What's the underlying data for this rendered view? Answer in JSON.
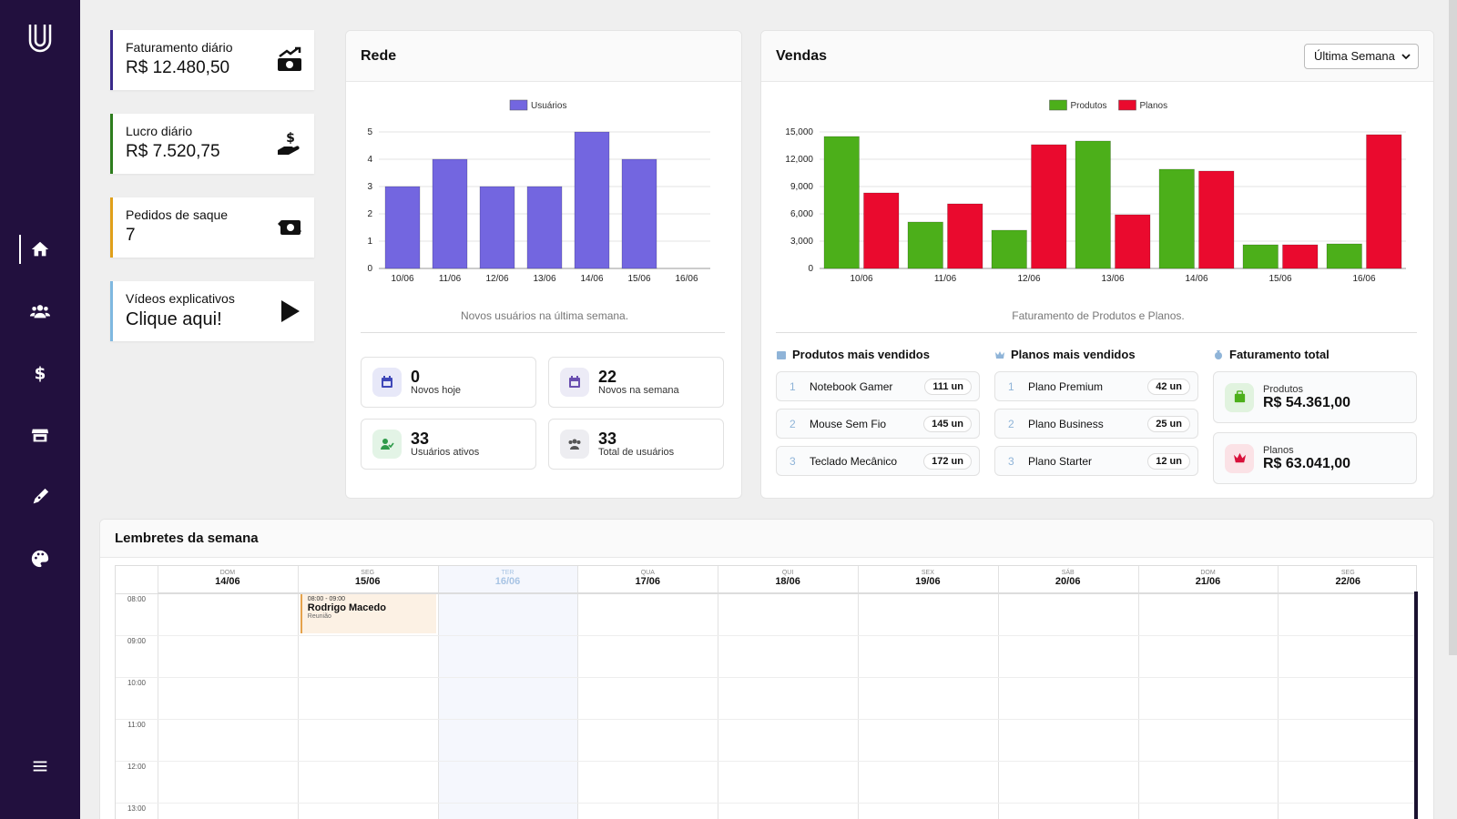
{
  "sidebar": {
    "items": [
      {
        "name": "home",
        "icon": "home-icon",
        "active": true
      },
      {
        "name": "users",
        "icon": "users-icon"
      },
      {
        "name": "finance",
        "icon": "dollar-icon"
      },
      {
        "name": "store",
        "icon": "store-icon"
      },
      {
        "name": "pen",
        "icon": "pen-icon"
      },
      {
        "name": "palette",
        "icon": "palette-icon"
      },
      {
        "name": "menu",
        "icon": "menu-icon"
      }
    ]
  },
  "stats": [
    {
      "label": "Faturamento diário",
      "value": "R$ 12.480,50",
      "icon": "money-growth-icon"
    },
    {
      "label": "Lucro diário",
      "value": "R$ 7.520,75",
      "icon": "hand-dollar-icon"
    },
    {
      "label": "Pedidos de saque",
      "value": "7",
      "icon": "money-exchange-icon"
    },
    {
      "label": "Vídeos explicativos",
      "value": "Clique aqui!",
      "icon": "play-icon"
    }
  ],
  "rede": {
    "title": "Rede",
    "caption": "Novos usuários na última semana.",
    "mini": [
      {
        "num": "0",
        "label": "Novos hoje",
        "icon": "calendar-icon"
      },
      {
        "num": "22",
        "label": "Novos na semana",
        "icon": "calendar-icon"
      },
      {
        "num": "33",
        "label": "Usuários ativos",
        "icon": "user-check-icon"
      },
      {
        "num": "33",
        "label": "Total de usuários",
        "icon": "users-icon"
      }
    ]
  },
  "vendas": {
    "title": "Vendas",
    "period": "Última Semana",
    "caption": "Faturamento de Produtos e Planos.",
    "produtos_title": "Produtos mais vendidos",
    "planos_title": "Planos mais vendidos",
    "total_title": "Faturamento total",
    "produtos": [
      {
        "rank": "1",
        "name": "Notebook Gamer",
        "qty": "111 un"
      },
      {
        "rank": "2",
        "name": "Mouse Sem Fio",
        "qty": "145 un"
      },
      {
        "rank": "3",
        "name": "Teclado Mecânico",
        "qty": "172 un"
      }
    ],
    "planos": [
      {
        "rank": "1",
        "name": "Plano Premium",
        "qty": "42 un"
      },
      {
        "rank": "2",
        "name": "Plano Business",
        "qty": "25 un"
      },
      {
        "rank": "3",
        "name": "Plano Starter",
        "qty": "12 un"
      }
    ],
    "totais": [
      {
        "label": "Produtos",
        "value": "R$ 54.361,00",
        "icon": "cart-icon"
      },
      {
        "label": "Planos",
        "value": "R$ 63.041,00",
        "icon": "crown-icon"
      }
    ]
  },
  "chart_data": [
    {
      "type": "bar",
      "categories": [
        "10/06",
        "11/06",
        "12/06",
        "13/06",
        "14/06",
        "15/06",
        "16/06"
      ],
      "series": [
        {
          "name": "Usuários",
          "values": [
            3,
            4,
            3,
            3,
            5,
            4,
            0
          ],
          "color": "#7366e0"
        }
      ],
      "yticks": [
        "0",
        "1",
        "2",
        "3",
        "4",
        "5"
      ],
      "ylim": [
        0,
        5
      ],
      "legend": "top-center",
      "grid": true
    },
    {
      "type": "bar",
      "categories": [
        "10/06",
        "11/06",
        "12/06",
        "13/06",
        "14/06",
        "15/06",
        "16/06"
      ],
      "series": [
        {
          "name": "Produtos",
          "values": [
            14500,
            5100,
            4200,
            14000,
            10900,
            2600,
            2700
          ],
          "color": "#4caf1a"
        },
        {
          "name": "Planos",
          "values": [
            8300,
            7100,
            13600,
            5900,
            10700,
            2600,
            14700
          ],
          "color": "#ea0a2e"
        }
      ],
      "yticks": [
        "0",
        "3,000",
        "6,000",
        "9,000",
        "12,000",
        "15,000"
      ],
      "ylim": [
        0,
        15000
      ],
      "legend": "top-center",
      "grid": true
    }
  ],
  "calendar": {
    "title": "Lembretes da semana",
    "days": [
      {
        "dow": "DOM",
        "date": "14/06"
      },
      {
        "dow": "SEG",
        "date": "15/06"
      },
      {
        "dow": "TER",
        "date": "16/06",
        "today": true
      },
      {
        "dow": "QUA",
        "date": "17/06"
      },
      {
        "dow": "QUI",
        "date": "18/06"
      },
      {
        "dow": "SEX",
        "date": "19/06"
      },
      {
        "dow": "SÁB",
        "date": "20/06"
      },
      {
        "dow": "DOM",
        "date": "21/06"
      },
      {
        "dow": "SEG",
        "date": "22/06"
      }
    ],
    "hours": [
      "08:00",
      "09:00",
      "10:00",
      "11:00",
      "12:00",
      "13:00"
    ],
    "event": {
      "time": "08:00 - 09:00",
      "name": "Rodrigo Macedo",
      "desc": "Reunião"
    }
  }
}
